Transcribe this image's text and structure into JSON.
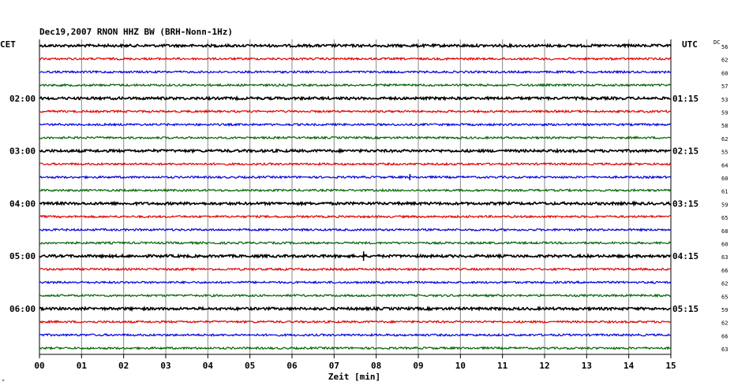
{
  "chart_data": {
    "type": "line",
    "title": "Dec19,2007   RNON HHZ BW (BRH-Nonn-1Hz)",
    "left_axis_label": "CET",
    "right_axis_label": "UTC",
    "dc_header": "DC",
    "xlabel": "Zeit [min]",
    "xlim": [
      0,
      15
    ],
    "x_ticks": [
      "00",
      "01",
      "02",
      "03",
      "04",
      "05",
      "06",
      "07",
      "08",
      "09",
      "10",
      "11",
      "12",
      "13",
      "14",
      "15"
    ],
    "grid": true,
    "left_hour_labels": [
      {
        "row": 4,
        "text": "02:00"
      },
      {
        "row": 8,
        "text": "03:00"
      },
      {
        "row": 12,
        "text": "04:00"
      },
      {
        "row": 16,
        "text": "05:00"
      },
      {
        "row": 20,
        "text": "06:00"
      }
    ],
    "right_hour_labels": [
      {
        "row": 4,
        "text": "01:15"
      },
      {
        "row": 8,
        "text": "02:15"
      },
      {
        "row": 12,
        "text": "03:15"
      },
      {
        "row": 16,
        "text": "04:15"
      },
      {
        "row": 20,
        "text": "05:15"
      }
    ],
    "trace_colors": [
      "#000000",
      "#e00000",
      "#0000e0",
      "#006400"
    ],
    "dc_values": [
      "56",
      "62",
      "60",
      "57",
      "53",
      "59",
      "58",
      "62",
      "55",
      "64",
      "60",
      "61",
      "59",
      "65",
      "68",
      "60",
      "63",
      "66",
      "62",
      "65",
      "59",
      "62",
      "66",
      "63"
    ],
    "events": [
      {
        "row": 10,
        "minute": 8.8,
        "amplitude": 4
      },
      {
        "row": 16,
        "minute": 7.7,
        "amplitude": 6
      }
    ]
  },
  "footer_mark": "\""
}
